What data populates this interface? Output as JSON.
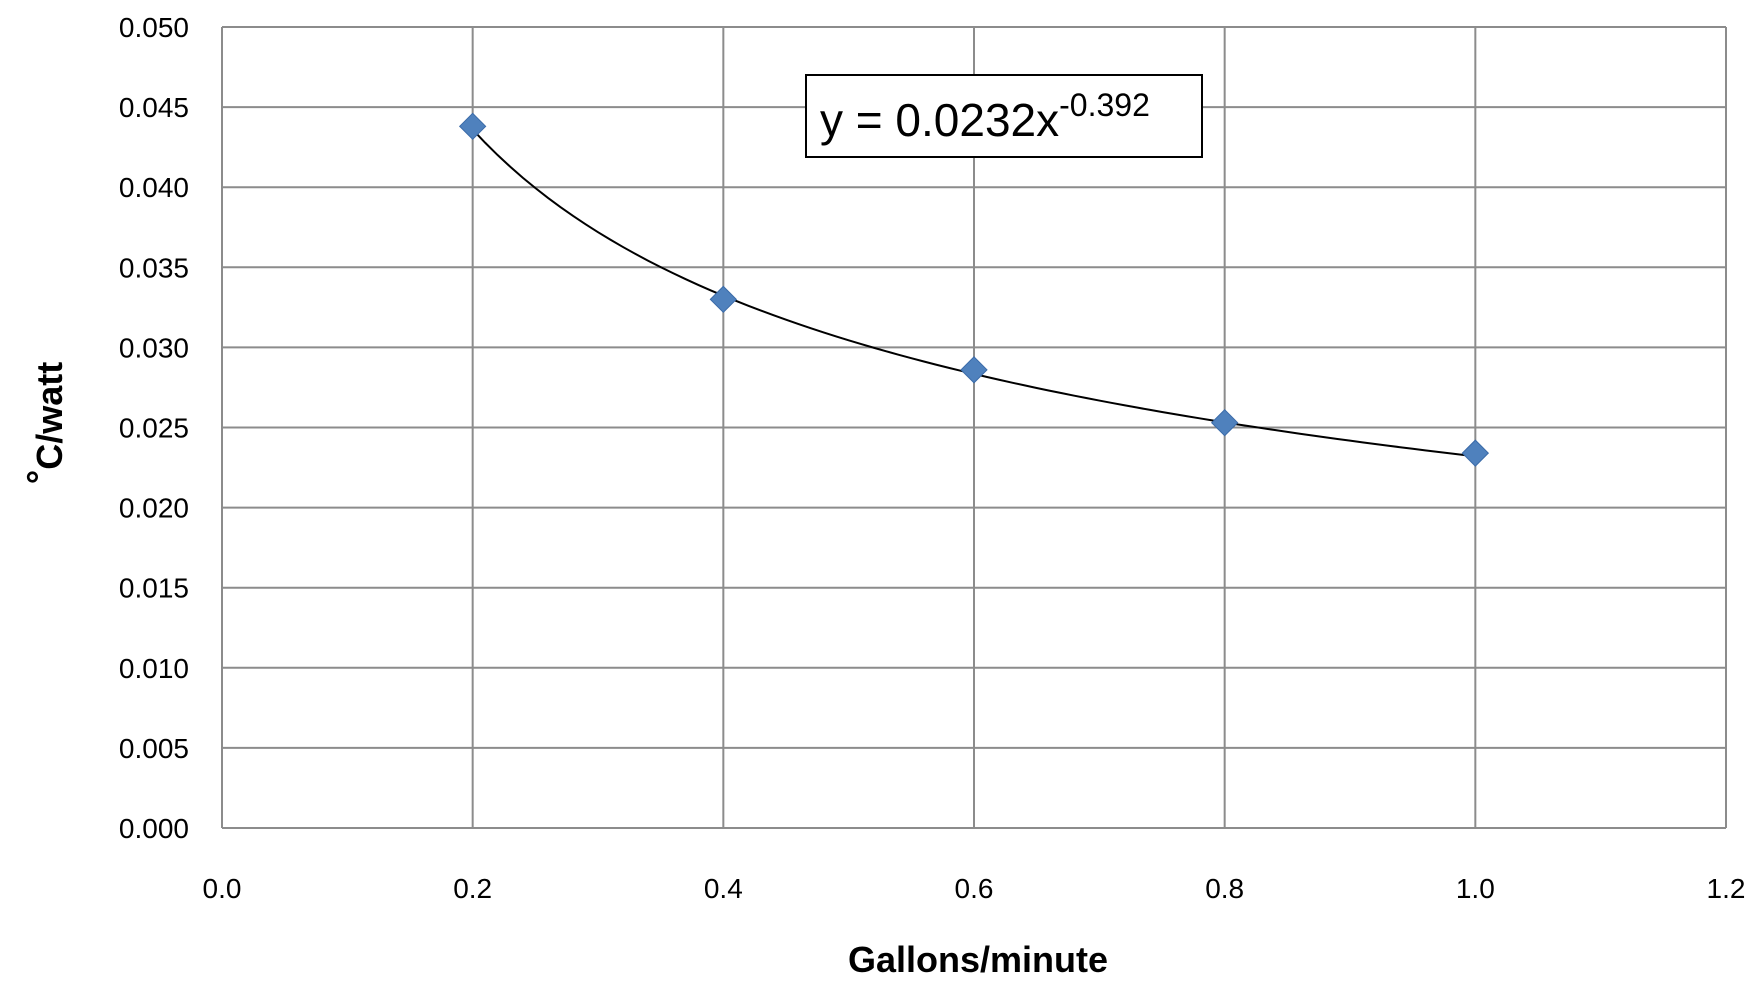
{
  "chart_data": {
    "type": "scatter",
    "title": "",
    "xlabel": "Gallons/minute",
    "ylabel": "°C/watt",
    "ylabel_degree": "°",
    "ylabel_rest": "C/watt",
    "xlim": [
      0,
      1.2
    ],
    "ylim": [
      0,
      0.05
    ],
    "x_ticks": [
      0,
      0.2,
      0.4,
      0.6,
      0.8,
      1.0,
      1.2
    ],
    "y_ticks": [
      0,
      0.005,
      0.01,
      0.015,
      0.02,
      0.025,
      0.03,
      0.035,
      0.04,
      0.045,
      0.05
    ],
    "x_tick_labels": [
      "0.0",
      "0.2",
      "0.4",
      "0.6",
      "0.8",
      "1.0",
      "1.2"
    ],
    "y_tick_labels": [
      "0.000",
      "0.005",
      "0.010",
      "0.015",
      "0.020",
      "0.025",
      "0.030",
      "0.035",
      "0.040",
      "0.045",
      "0.050"
    ],
    "grid": true,
    "series": [
      {
        "marker": "diamond",
        "color": "#4F81BD",
        "x": [
          0.2,
          0.4,
          0.6,
          0.8,
          1.0
        ],
        "y": [
          0.0438,
          0.033,
          0.0286,
          0.0253,
          0.0234
        ]
      }
    ],
    "trendline": {
      "type": "power",
      "a": 0.0232,
      "b": -0.392,
      "x_range": [
        0.2,
        1.0
      ],
      "color": "#000000",
      "equation_prefix": "y = 0.0232x",
      "equation_exponent": "-0.392"
    }
  }
}
